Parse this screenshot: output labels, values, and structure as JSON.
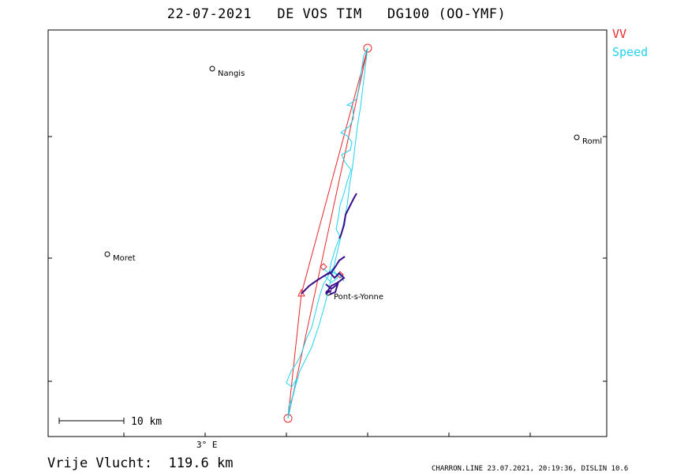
{
  "header": {
    "date": "22-07-2021",
    "pilot": "DE VOS TIM",
    "glider": "DG100 (OO-YMF)"
  },
  "legend": {
    "vv_label": "VV",
    "speed_label": "Speed",
    "vv_color": "#e8262a",
    "speed_color": "#1fd3ee",
    "climb_color": "#3a0f8c"
  },
  "map": {
    "places": [
      {
        "name": "Nangis"
      },
      {
        "name": "Roml"
      },
      {
        "name": "Moret"
      },
      {
        "name": "Pont-s-Yonne"
      }
    ],
    "longitude_label": "3° E",
    "scale_label": "10 km"
  },
  "footer": {
    "distance_label": "Vrije Vlucht:",
    "distance_value": "119.6 km",
    "software_credit": "CHARRON.LINE 23.07.2021, 20:19:36, DISLIN 10.6"
  }
}
